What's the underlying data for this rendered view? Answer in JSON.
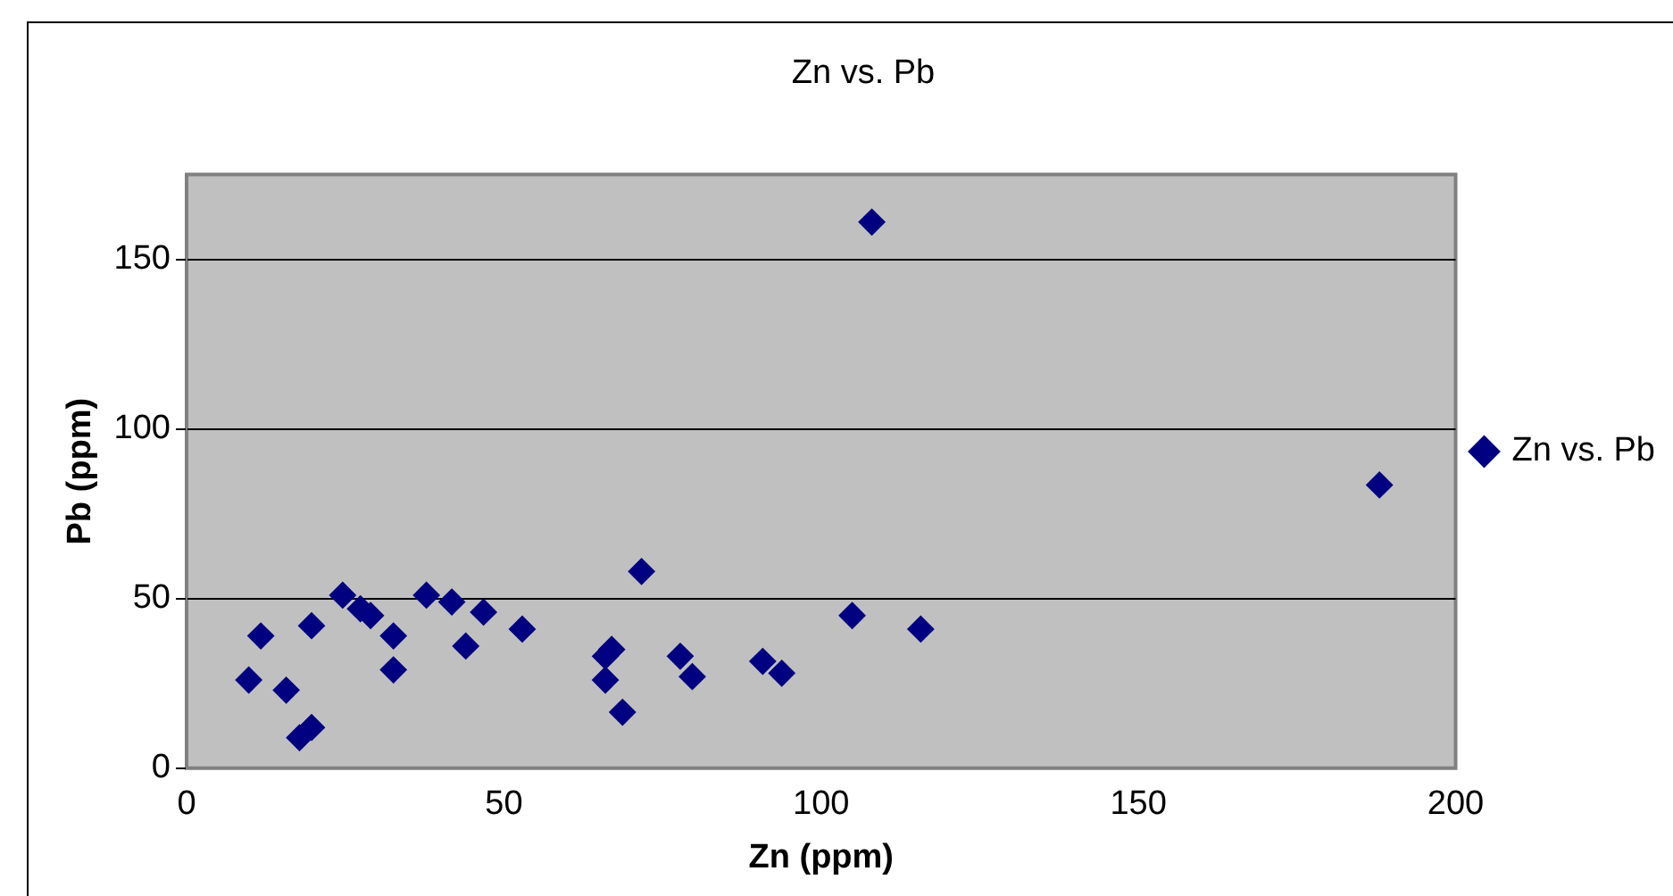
{
  "chart_data": {
    "type": "scatter",
    "title": "Zn vs. Pb",
    "xlabel": "Zn (ppm)",
    "ylabel": "Pb (ppm)",
    "series": [
      {
        "name": "Zn vs. Pb",
        "color": "#000080",
        "x": [
          11.7,
          9.8,
          15.7,
          17.8,
          19.7,
          19.7,
          24.6,
          27.4,
          29,
          32.6,
          32.6,
          37.8,
          41.8,
          46.8,
          44,
          52.9,
          71.7,
          66,
          67,
          66,
          68.7,
          77.8,
          79.7,
          90.8,
          93.8,
          104.9,
          115.7,
          108,
          188
        ],
        "values": [
          39,
          26,
          23,
          9,
          12,
          42,
          51,
          47,
          45,
          39,
          29,
          51,
          49,
          46,
          36,
          41,
          58,
          33,
          35,
          26,
          16.5,
          33,
          27,
          31.5,
          28,
          45,
          41,
          161,
          83.5
        ]
      }
    ],
    "xlim": [
      0,
      200
    ],
    "xticks": [
      0,
      50,
      100,
      150,
      200
    ],
    "ylim": [
      0,
      175
    ],
    "yticks": [
      0,
      50,
      100,
      150
    ],
    "grid": "y",
    "legend": "right",
    "marker": "diamond"
  }
}
